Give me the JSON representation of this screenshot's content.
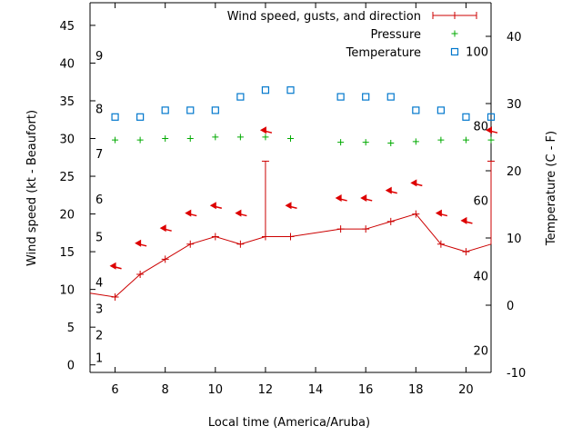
{
  "chart_data": {
    "type": "line",
    "xlabel": "Local time (America/Aruba)",
    "ylabel": "Wind speed (kt - Beaufort)",
    "y2label": "Temperature (C - F)",
    "xlim": [
      5,
      21
    ],
    "ylim": [
      -1,
      48
    ],
    "y2lim": [
      -10,
      45
    ],
    "x_ticks": [
      6,
      8,
      10,
      12,
      14,
      16,
      18,
      20
    ],
    "y_ticks": [
      0,
      5,
      10,
      15,
      20,
      25,
      30,
      35,
      40,
      45
    ],
    "y2_ticks": [
      -10,
      0,
      10,
      20,
      30,
      40
    ],
    "beaufort_scale": [
      {
        "label": "1",
        "y": 1
      },
      {
        "label": "2",
        "y": 4
      },
      {
        "label": "3",
        "y": 7.5
      },
      {
        "label": "4",
        "y": 11
      },
      {
        "label": "5",
        "y": 17
      },
      {
        "label": "6",
        "y": 22
      },
      {
        "label": "7",
        "y": 28
      },
      {
        "label": "8",
        "y": 34
      },
      {
        "label": "9",
        "y": 41
      }
    ],
    "fahrenheit_scale": [
      {
        "label": "20",
        "c": -6.7
      },
      {
        "label": "40",
        "c": 4.4
      },
      {
        "label": "60",
        "c": 15.6
      },
      {
        "label": "80",
        "c": 26.7
      },
      {
        "label": "100",
        "c": 37.8
      }
    ],
    "legend": {
      "position": "top-right",
      "entries": [
        "Wind speed, gusts, and direction",
        "Pressure",
        "Temperature"
      ]
    },
    "series": [
      {
        "name": "Wind speed, gusts, and direction",
        "x": [
          5,
          6,
          7,
          8,
          9,
          10,
          11,
          12,
          13,
          15,
          16,
          17,
          18,
          19,
          20,
          21
        ],
        "values": [
          9.5,
          9,
          12,
          14,
          16,
          17,
          16,
          17,
          17,
          18,
          18,
          19,
          20,
          16,
          15,
          16
        ],
        "gusts": [
          {
            "x": 12,
            "from": 17,
            "to": 27
          },
          {
            "x": 21,
            "from": 16,
            "to": 27
          }
        ],
        "direction_arrows": [
          {
            "x": 6,
            "y": 13
          },
          {
            "x": 7,
            "y": 16
          },
          {
            "x": 8,
            "y": 18
          },
          {
            "x": 9,
            "y": 20
          },
          {
            "x": 10,
            "y": 21
          },
          {
            "x": 11,
            "y": 20
          },
          {
            "x": 12,
            "y": 31
          },
          {
            "x": 13,
            "y": 21
          },
          {
            "x": 15,
            "y": 22
          },
          {
            "x": 16,
            "y": 22
          },
          {
            "x": 17,
            "y": 23
          },
          {
            "x": 18,
            "y": 24
          },
          {
            "x": 19,
            "y": 20
          },
          {
            "x": 20,
            "y": 19
          },
          {
            "x": 21,
            "y": 31
          }
        ]
      },
      {
        "name": "Pressure",
        "x": [
          6,
          7,
          8,
          9,
          10,
          11,
          12,
          13,
          15,
          16,
          17,
          18,
          19,
          20,
          21
        ],
        "values": [
          29.8,
          29.8,
          30.0,
          30.0,
          30.2,
          30.2,
          30.2,
          30.0,
          29.5,
          29.5,
          29.4,
          29.6,
          29.8,
          29.8,
          29.8
        ]
      },
      {
        "name": "Temperature",
        "x": [
          6,
          7,
          8,
          9,
          10,
          11,
          12,
          13,
          15,
          16,
          17,
          18,
          19,
          20,
          21
        ],
        "values": [
          28,
          28,
          29,
          29,
          29,
          31,
          32,
          32,
          31,
          31,
          31,
          29,
          29,
          28,
          28
        ]
      }
    ]
  }
}
